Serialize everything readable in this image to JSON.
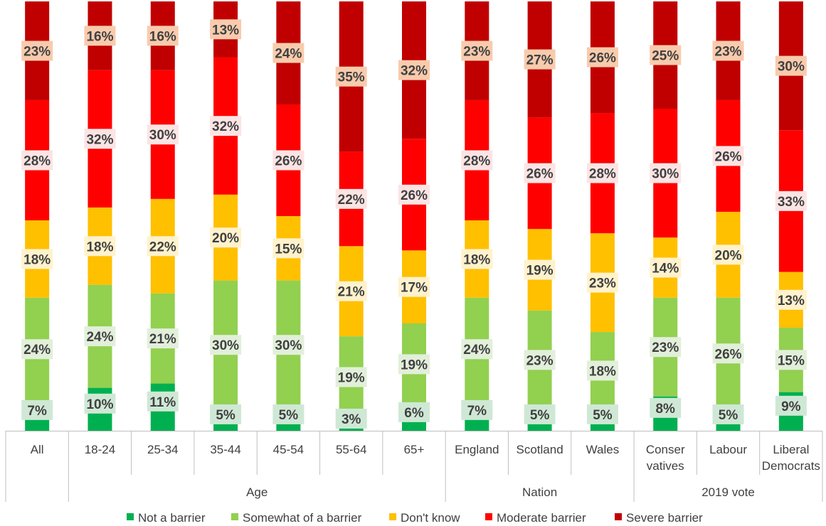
{
  "chart_data": {
    "type": "bar",
    "stacked": true,
    "percent_stacked": true,
    "title": "",
    "xlabel": "",
    "ylabel": "",
    "ylim": [
      0,
      100
    ],
    "grid": false,
    "legend_position": "bottom",
    "categories": [
      "All",
      "18-24",
      "25-34",
      "35-44",
      "45-54",
      "55-64",
      "65+",
      "England",
      "Scotland",
      "Wales",
      "Conser vatives",
      "Labour",
      "Liberal Democrats"
    ],
    "groups": [
      {
        "label": "",
        "start": 0,
        "end": 0
      },
      {
        "label": "Age",
        "start": 1,
        "end": 6
      },
      {
        "label": "Nation",
        "start": 7,
        "end": 9
      },
      {
        "label": "2019 vote",
        "start": 10,
        "end": 12
      }
    ],
    "series": [
      {
        "name": "Not a barrier",
        "color": "#00b050",
        "values": [
          7,
          10,
          11,
          5,
          5,
          3,
          6,
          7,
          5,
          5,
          8,
          5,
          9
        ],
        "labels": [
          "7%",
          "10%",
          "11%",
          "5%",
          "5%",
          "3%",
          "6%",
          "7%",
          "5%",
          "5%",
          "8%",
          "5%",
          "9%"
        ]
      },
      {
        "name": "Somewhat of a barrier",
        "color": "#92d050",
        "values": [
          24,
          24,
          21,
          30,
          30,
          19,
          19,
          24,
          23,
          18,
          23,
          26,
          15
        ],
        "labels": [
          "24%",
          "24%",
          "21%",
          "30%",
          "30%",
          "19%",
          "19%",
          "24%",
          "23%",
          "18%",
          "23%",
          "26%",
          "15%"
        ]
      },
      {
        "name": "Don't know",
        "color": "#ffc000",
        "values": [
          18,
          18,
          22,
          20,
          15,
          21,
          17,
          18,
          19,
          23,
          14,
          20,
          13
        ],
        "labels": [
          "18%",
          "18%",
          "22%",
          "20%",
          "15%",
          "21%",
          "17%",
          "18%",
          "19%",
          "23%",
          "14%",
          "20%",
          "13%"
        ]
      },
      {
        "name": "Moderate barrier",
        "color": "#ff0000",
        "values": [
          28,
          32,
          30,
          32,
          26,
          22,
          26,
          28,
          26,
          28,
          30,
          26,
          33
        ],
        "labels": [
          "28%",
          "32%",
          "30%",
          "32%",
          "26%",
          "22%",
          "26%",
          "28%",
          "26%",
          "28%",
          "30%",
          "26%",
          "33%"
        ]
      },
      {
        "name": "Severe barrier",
        "color": "#c00000",
        "values": [
          23,
          16,
          16,
          13,
          24,
          35,
          32,
          23,
          27,
          26,
          25,
          23,
          30
        ],
        "labels": [
          "23%",
          "16%",
          "16%",
          "13%",
          "24%",
          "35%",
          "32%",
          "23%",
          "27%",
          "26%",
          "25%",
          "23%",
          "30%"
        ]
      }
    ],
    "label_box_colors": [
      "#cfe8d5",
      "#e2efda",
      "#fff2cc",
      "#fce4e4",
      "#f8cbad"
    ]
  }
}
